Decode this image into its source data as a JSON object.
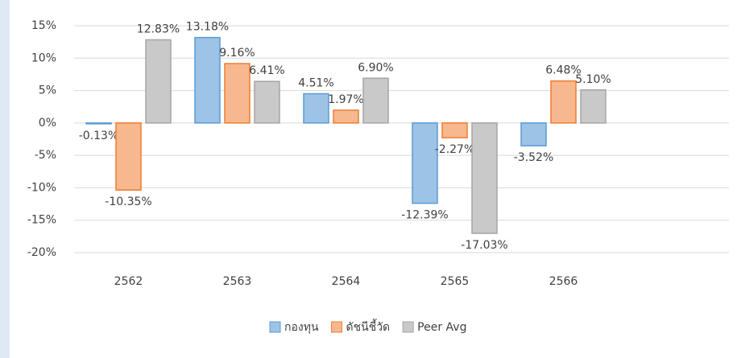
{
  "chart_data": {
    "type": "bar",
    "categories": [
      "2562",
      "2563",
      "2564",
      "2565",
      "2566",
      null
    ],
    "series": [
      {
        "name": "กองทุน",
        "color": "#9dc3e6",
        "stroke": "#5b9bd5",
        "values": [
          -0.13,
          13.18,
          4.51,
          -12.39,
          -3.52,
          null
        ],
        "value_labels": [
          "-0.13%",
          "13.18%",
          "4.51%",
          "-12.39%",
          "-3.52%",
          null
        ]
      },
      {
        "name": "ดัชนีชี้วัด",
        "color": "#f8b88f",
        "stroke": "#ed7d31",
        "values": [
          -10.35,
          9.16,
          1.97,
          -2.27,
          6.48,
          null
        ],
        "value_labels": [
          "-10.35%",
          "9.16%",
          "1.97%",
          "-2.27%",
          "6.48%",
          null
        ]
      },
      {
        "name": "Peer Avg",
        "color": "#c9c9c9",
        "stroke": "#a5a5a5",
        "values": [
          12.83,
          6.41,
          6.9,
          -17.03,
          5.1,
          null
        ],
        "value_labels": [
          "12.83%",
          "6.41%",
          "6.90%",
          "-17.03%",
          "5.10%",
          null
        ]
      }
    ],
    "ylim": [
      -20,
      15
    ],
    "yticks": [
      {
        "value": -20,
        "label": "-20%"
      },
      {
        "value": -15,
        "label": "-15%"
      },
      {
        "value": -10,
        "label": "-10%"
      },
      {
        "value": -5,
        "label": "-5%"
      },
      {
        "value": 0,
        "label": "0%"
      },
      {
        "value": 5,
        "label": "5%"
      },
      {
        "value": 10,
        "label": "10%"
      },
      {
        "value": 15,
        "label": "15%"
      }
    ],
    "grid": true,
    "legend": "bottom"
  }
}
